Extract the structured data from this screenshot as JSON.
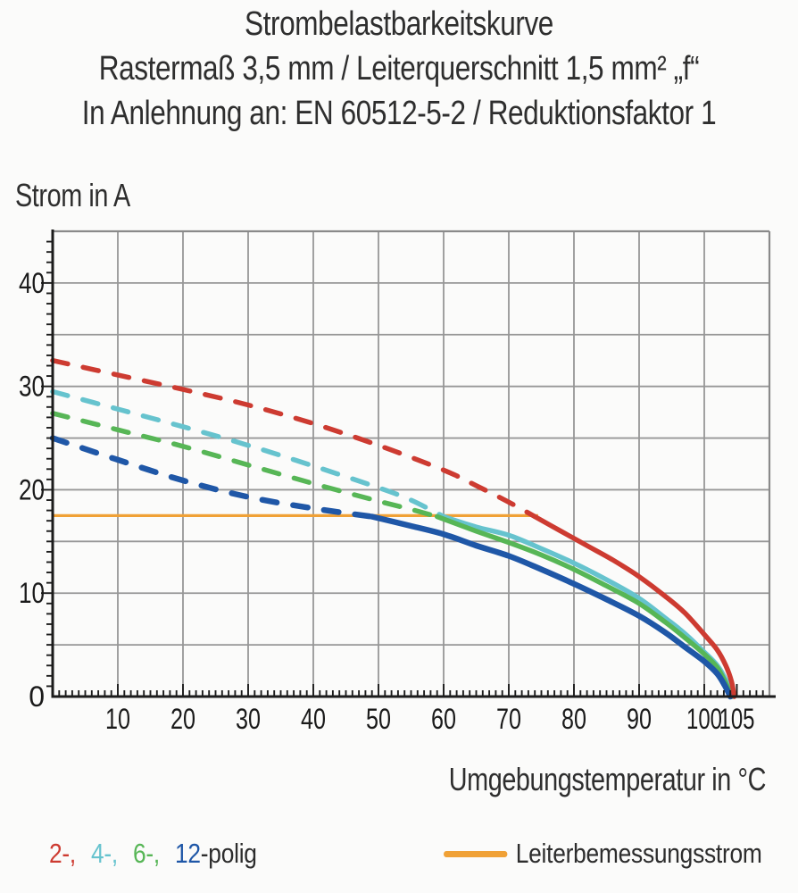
{
  "title": {
    "line1": "Strombelastbarkeitskurve",
    "line2": "Rastermaß 3,5 mm / Leiterquerschnitt 1,5 mm² „f“",
    "line3": "In Anlehnung an: EN 60512-5-2 / Reduktionsfaktor 1"
  },
  "chart_data": {
    "type": "line",
    "title": "Strombelastbarkeitskurve",
    "xlabel": "Umgebungstemperatur in °C",
    "ylabel": "Strom in A",
    "xlim": [
      0,
      110
    ],
    "ylim": [
      0,
      45
    ],
    "x_tick_labels": [
      10,
      20,
      30,
      40,
      50,
      60,
      70,
      80,
      90,
      100,
      105
    ],
    "y_tick_labels": [
      0,
      10,
      20,
      30,
      40
    ],
    "x_gridline_step": 10,
    "x_gridline_max": 100,
    "y_gridline_step": 5,
    "x_minor_tick_step": 1,
    "y_minor_tick_step": 1,
    "grid": true,
    "legend_position": "bottom",
    "legend_suffix": "-polig",
    "rated_current": {
      "label": "Leiterbemessungsstrom",
      "value_a": 17.5,
      "t_start_c": 0,
      "t_end_c": 74.5,
      "color": "#F0A136"
    },
    "series": [
      {
        "name": "2-polig",
        "legend": "2-,",
        "color": "#CD3B31",
        "line_width": 5.5,
        "style_above_rated": "dashed",
        "dash_until_c": 74,
        "points_c_a": [
          [
            0,
            32.5
          ],
          [
            10,
            31.1
          ],
          [
            20,
            29.7
          ],
          [
            30,
            28.2
          ],
          [
            40,
            26.4
          ],
          [
            50,
            24.3
          ],
          [
            60,
            21.9
          ],
          [
            65,
            20.4
          ],
          [
            70,
            18.8
          ],
          [
            74,
            17.4
          ],
          [
            78,
            16.0
          ],
          [
            82,
            14.6
          ],
          [
            86,
            13.2
          ],
          [
            90,
            11.6
          ],
          [
            94,
            9.7
          ],
          [
            97,
            8.1
          ],
          [
            100,
            6.0
          ],
          [
            102,
            4.5
          ],
          [
            103.3,
            3.0
          ],
          [
            104.2,
            1.4
          ],
          [
            104.6,
            0
          ]
        ]
      },
      {
        "name": "4-polig",
        "legend": "4-,",
        "color": "#66C3CE",
        "line_width": 5.5,
        "style_above_rated": "dashed",
        "dash_until_c": 60,
        "points_c_a": [
          [
            0,
            29.5
          ],
          [
            10,
            27.8
          ],
          [
            20,
            26.1
          ],
          [
            30,
            24.3
          ],
          [
            40,
            22.3
          ],
          [
            50,
            20.2
          ],
          [
            55,
            19.0
          ],
          [
            60,
            17.4
          ],
          [
            65,
            16.4
          ],
          [
            70,
            15.6
          ],
          [
            75,
            14.3
          ],
          [
            80,
            12.9
          ],
          [
            85,
            11.3
          ],
          [
            90,
            9.5
          ],
          [
            94,
            7.6
          ],
          [
            97,
            6.1
          ],
          [
            100,
            4.3
          ],
          [
            102,
            3.0
          ],
          [
            103.4,
            1.5
          ],
          [
            104.3,
            0
          ]
        ]
      },
      {
        "name": "6-polig",
        "legend": "6-,",
        "color": "#57B656",
        "line_width": 5.5,
        "style_above_rated": "dashed",
        "dash_until_c": 59,
        "points_c_a": [
          [
            0,
            27.4
          ],
          [
            10,
            25.8
          ],
          [
            20,
            24.2
          ],
          [
            30,
            22.4
          ],
          [
            40,
            20.6
          ],
          [
            50,
            18.9
          ],
          [
            55,
            18.1
          ],
          [
            59,
            17.4
          ],
          [
            65,
            16.0
          ],
          [
            70,
            14.9
          ],
          [
            75,
            13.7
          ],
          [
            80,
            12.3
          ],
          [
            85,
            10.7
          ],
          [
            90,
            9.0
          ],
          [
            94,
            7.2
          ],
          [
            97,
            5.7
          ],
          [
            100,
            4.1
          ],
          [
            102,
            2.8
          ],
          [
            103.3,
            1.3
          ],
          [
            104.2,
            0
          ]
        ]
      },
      {
        "name": "12-polig",
        "legend": "12",
        "color": "#1F57A7",
        "line_width": 6.5,
        "style_above_rated": "dashed",
        "dash_until_c": 49,
        "points_c_a": [
          [
            0,
            25.0
          ],
          [
            10,
            22.9
          ],
          [
            20,
            20.9
          ],
          [
            30,
            19.3
          ],
          [
            40,
            18.2
          ],
          [
            49,
            17.4
          ],
          [
            55,
            16.5
          ],
          [
            60,
            15.7
          ],
          [
            65,
            14.6
          ],
          [
            70,
            13.6
          ],
          [
            75,
            12.3
          ],
          [
            80,
            10.9
          ],
          [
            85,
            9.4
          ],
          [
            90,
            7.8
          ],
          [
            94,
            6.2
          ],
          [
            97,
            4.8
          ],
          [
            100,
            3.4
          ],
          [
            102,
            2.2
          ],
          [
            103.2,
            1.0
          ],
          [
            104,
            0
          ]
        ]
      }
    ]
  },
  "colors": {
    "grid": "#979797",
    "frame": "#8a8a8a",
    "axis": "#1c1c1c",
    "text": "#2d2d2d",
    "tick_label": "#1a1a1a"
  }
}
